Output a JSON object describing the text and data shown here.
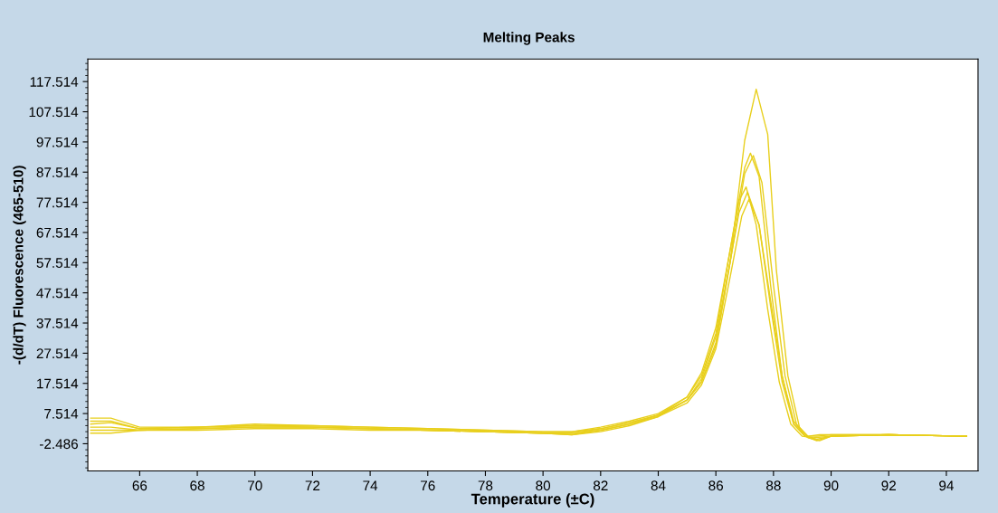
{
  "chart_data": {
    "type": "line",
    "title": "Melting Peaks",
    "xlabel": "Temperature (±C)",
    "ylabel": "-(d/dT) Fluorescence (465-510)",
    "xlim": [
      64.2,
      95.1
    ],
    "xticks": [
      66,
      68,
      70,
      72,
      74,
      76,
      78,
      80,
      82,
      84,
      86,
      88,
      90,
      92,
      94
    ],
    "ylim": [
      -11.5,
      125
    ],
    "yticks": [
      -2.486,
      7.514,
      17.514,
      27.514,
      37.514,
      47.514,
      57.514,
      67.514,
      77.514,
      87.514,
      97.514,
      107.514,
      117.514
    ],
    "grid": false,
    "marker": "none",
    "line_style": "solid",
    "series": [
      {
        "color": "#e8cf1c",
        "x": [
          64.3,
          65,
          66,
          68,
          70,
          72,
          74,
          76,
          78,
          80,
          81,
          82,
          83,
          84,
          85,
          85.5,
          86,
          86.5,
          87,
          87.4,
          87.8,
          88.1,
          88.5,
          88.9,
          89.2,
          89.6,
          90,
          92,
          94.7
        ],
        "values": [
          6,
          6,
          3,
          3,
          4,
          3.5,
          3,
          2.5,
          2,
          1.5,
          1.5,
          2.5,
          4.5,
          7,
          12,
          18,
          30,
          58,
          98,
          115,
          100,
          55,
          20,
          3,
          0,
          0.5,
          0.5,
          0.5,
          0
        ]
      },
      {
        "color": "#e8cf1c",
        "x": [
          64.3,
          65,
          66,
          68,
          70,
          72,
          74,
          76,
          78,
          80,
          81,
          82,
          83,
          84,
          85,
          85.5,
          86,
          86.5,
          87,
          87.2,
          87.5,
          87.9,
          88.3,
          88.7,
          89.1,
          89.5,
          90,
          92,
          94.7
        ],
        "values": [
          4,
          4.5,
          2.5,
          3,
          3.5,
          3.5,
          3,
          2.5,
          2,
          1.5,
          1.5,
          3,
          5,
          7.5,
          13,
          20,
          34,
          62,
          89,
          93.8,
          86,
          50,
          20,
          4,
          0,
          0,
          0.5,
          0.5,
          0
        ]
      },
      {
        "color": "#e8cf1c",
        "x": [
          64.3,
          65,
          66,
          68,
          70,
          72,
          74,
          76,
          78,
          80,
          81,
          82,
          83,
          84,
          85,
          85.5,
          86,
          86.5,
          87,
          87.3,
          87.6,
          88,
          88.4,
          88.8,
          89.2,
          89.6,
          90,
          92,
          94.7
        ],
        "values": [
          3,
          3,
          2,
          2.5,
          3,
          3,
          2.5,
          2,
          1.5,
          1,
          1,
          2.5,
          4.5,
          7,
          12,
          18,
          31,
          58,
          87,
          93,
          84,
          50,
          20,
          4,
          -0.5,
          -1.5,
          0,
          0.5,
          0
        ]
      },
      {
        "color": "#e8cf1c",
        "x": [
          64.3,
          65,
          66,
          68,
          70,
          72,
          74,
          76,
          78,
          80,
          81,
          82,
          83,
          84,
          85,
          85.5,
          86,
          86.5,
          86.8,
          87.05,
          87.4,
          87.8,
          88.2,
          88.6,
          89,
          89.4,
          90,
          92,
          94.7
        ],
        "values": [
          2,
          2,
          2,
          2.5,
          3,
          3,
          2.5,
          2,
          1.5,
          1,
          0.5,
          2,
          4,
          7,
          13,
          21,
          36,
          62,
          78,
          82.6,
          70,
          42,
          18,
          4,
          0,
          -0.5,
          0,
          0.5,
          0
        ]
      },
      {
        "color": "#e8cf1c",
        "x": [
          64.3,
          65,
          66,
          68,
          70,
          72,
          74,
          76,
          78,
          80,
          81,
          82,
          83,
          84,
          85,
          85.5,
          86,
          86.5,
          86.8,
          87.1,
          87.5,
          87.9,
          88.3,
          88.7,
          89.1,
          89.5,
          90,
          92,
          94.7
        ],
        "values": [
          1,
          1,
          2,
          2,
          2.5,
          2.5,
          2,
          2,
          1.5,
          1,
          0.5,
          1.5,
          3.5,
          6.5,
          12,
          19,
          33,
          58,
          74,
          80.9,
          70,
          43,
          18,
          4,
          0,
          -1,
          0,
          0.5,
          0
        ]
      },
      {
        "color": "#e8cf1c",
        "x": [
          64.3,
          65,
          66,
          68,
          70,
          72,
          74,
          76,
          78,
          80,
          81,
          82,
          83,
          84,
          85,
          85.5,
          86,
          86.5,
          86.9,
          87.15,
          87.5,
          87.9,
          88.3,
          88.7,
          89.1,
          89.5,
          90,
          92,
          94.7
        ],
        "values": [
          5,
          5,
          2.5,
          3,
          3.5,
          3,
          2.5,
          2,
          1.5,
          1,
          1,
          2,
          4,
          6.5,
          11,
          17,
          29,
          53,
          73,
          78.5,
          70,
          45,
          20,
          5,
          0,
          -1.5,
          0,
          0.5,
          0
        ]
      }
    ]
  }
}
